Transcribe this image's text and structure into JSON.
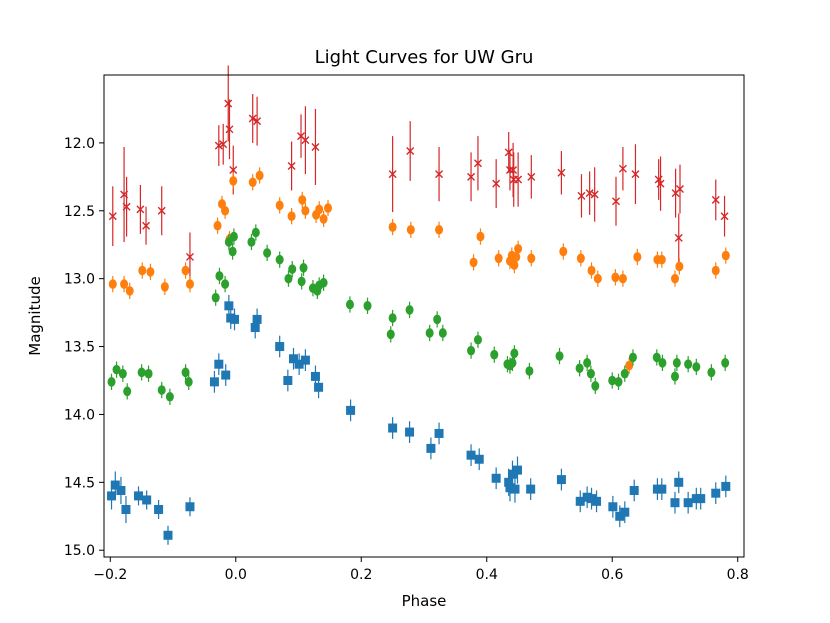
{
  "chart_data": {
    "type": "scatter",
    "title": "Light Curves for UW Gru",
    "xlabel": "Phase",
    "ylabel": "Magnitude",
    "xlim": [
      -0.21,
      0.81
    ],
    "ylim": [
      11.5,
      15.05
    ],
    "y_inverted": true,
    "x_ticks": [
      -0.2,
      0.0,
      0.2,
      0.4,
      0.6,
      0.8
    ],
    "x_tick_labels": [
      "−0.2",
      "0.0",
      "0.2",
      "0.4",
      "0.6",
      "0.8"
    ],
    "y_ticks": [
      12.0,
      12.5,
      13.0,
      13.5,
      14.0,
      14.5,
      15.0
    ],
    "y_tick_labels": [
      "12.0",
      "12.5",
      "13.0",
      "13.5",
      "14.0",
      "14.5",
      "15.0"
    ],
    "series": [
      {
        "name": "red",
        "color": "#d62728",
        "marker": "x",
        "points": [
          [
            -0.196,
            12.54,
            0.22
          ],
          [
            -0.178,
            12.38,
            0.35
          ],
          [
            -0.174,
            12.47,
            0.22
          ],
          [
            -0.152,
            12.49,
            0.18
          ],
          [
            -0.143,
            12.61,
            0.14
          ],
          [
            -0.118,
            12.5,
            0.18
          ],
          [
            -0.073,
            12.84,
            0.18
          ],
          [
            -0.027,
            12.02,
            0.15
          ],
          [
            -0.02,
            12.01,
            0.15
          ],
          [
            -0.012,
            11.71,
            0.28
          ],
          [
            -0.01,
            11.9,
            0.22
          ],
          [
            -0.004,
            12.2,
            0.18
          ],
          [
            0.027,
            11.82,
            0.18
          ],
          [
            0.034,
            11.84,
            0.18
          ],
          [
            0.089,
            12.17,
            0.18
          ],
          [
            0.104,
            11.95,
            0.16
          ],
          [
            0.111,
            11.98,
            0.25
          ],
          [
            0.127,
            12.03,
            0.28
          ],
          [
            0.25,
            12.23,
            0.28
          ],
          [
            0.278,
            12.06,
            0.22
          ],
          [
            0.324,
            12.23,
            0.2
          ],
          [
            0.375,
            12.25,
            0.18
          ],
          [
            0.386,
            12.15,
            0.2
          ],
          [
            0.415,
            12.3,
            0.18
          ],
          [
            0.435,
            12.07,
            0.15
          ],
          [
            0.437,
            12.2,
            0.15
          ],
          [
            0.442,
            12.2,
            0.2
          ],
          [
            0.443,
            12.27,
            0.2
          ],
          [
            0.45,
            12.27,
            0.2
          ],
          [
            0.471,
            12.25,
            0.16
          ],
          [
            0.519,
            12.22,
            0.16
          ],
          [
            0.551,
            12.39,
            0.16
          ],
          [
            0.564,
            12.37,
            0.16
          ],
          [
            0.572,
            12.38,
            0.2
          ],
          [
            0.606,
            12.43,
            0.18
          ],
          [
            0.617,
            12.19,
            0.16
          ],
          [
            0.637,
            12.23,
            0.22
          ],
          [
            0.674,
            12.27,
            0.15
          ],
          [
            0.677,
            12.3,
            0.2
          ],
          [
            0.701,
            12.37,
            0.18
          ],
          [
            0.706,
            12.7,
            0.18
          ],
          [
            0.708,
            12.34,
            0.18
          ],
          [
            0.765,
            12.42,
            0.15
          ],
          [
            0.779,
            12.54,
            0.15
          ]
        ]
      },
      {
        "name": "orange",
        "color": "#ff7f0e",
        "marker": "o",
        "points": [
          [
            -0.196,
            13.04,
            0.06
          ],
          [
            -0.178,
            13.04,
            0.06
          ],
          [
            -0.169,
            13.09,
            0.06
          ],
          [
            -0.149,
            12.94,
            0.06
          ],
          [
            -0.136,
            12.95,
            0.06
          ],
          [
            -0.113,
            13.06,
            0.06
          ],
          [
            -0.08,
            12.94,
            0.06
          ],
          [
            -0.073,
            13.04,
            0.06
          ],
          [
            -0.029,
            12.61,
            0.06
          ],
          [
            -0.022,
            12.45,
            0.06
          ],
          [
            -0.017,
            12.5,
            0.06
          ],
          [
            -0.01,
            12.71,
            0.06
          ],
          [
            -0.004,
            12.28,
            0.06
          ],
          [
            0.027,
            12.29,
            0.06
          ],
          [
            0.038,
            12.24,
            0.06
          ],
          [
            0.07,
            12.46,
            0.06
          ],
          [
            0.089,
            12.54,
            0.06
          ],
          [
            0.106,
            12.42,
            0.06
          ],
          [
            0.111,
            12.5,
            0.06
          ],
          [
            0.128,
            12.53,
            0.06
          ],
          [
            0.133,
            12.49,
            0.06
          ],
          [
            0.14,
            12.56,
            0.06
          ],
          [
            0.147,
            12.48,
            0.06
          ],
          [
            0.25,
            12.62,
            0.06
          ],
          [
            0.279,
            12.64,
            0.06
          ],
          [
            0.324,
            12.64,
            0.06
          ],
          [
            0.379,
            12.88,
            0.06
          ],
          [
            0.39,
            12.69,
            0.06
          ],
          [
            0.419,
            12.85,
            0.06
          ],
          [
            0.437,
            12.87,
            0.06
          ],
          [
            0.44,
            12.83,
            0.06
          ],
          [
            0.444,
            12.9,
            0.06
          ],
          [
            0.447,
            12.84,
            0.06
          ],
          [
            0.45,
            12.78,
            0.06
          ],
          [
            0.471,
            12.85,
            0.06
          ],
          [
            0.522,
            12.8,
            0.06
          ],
          [
            0.55,
            12.85,
            0.06
          ],
          [
            0.567,
            12.94,
            0.06
          ],
          [
            0.577,
            13.0,
            0.06
          ],
          [
            0.605,
            12.99,
            0.06
          ],
          [
            0.617,
            13.0,
            0.06
          ],
          [
            0.627,
            13.64,
            0.06
          ],
          [
            0.64,
            12.84,
            0.06
          ],
          [
            0.672,
            12.86,
            0.06
          ],
          [
            0.679,
            12.86,
            0.06
          ],
          [
            0.7,
            13.0,
            0.06
          ],
          [
            0.707,
            12.91,
            0.06
          ],
          [
            0.765,
            12.94,
            0.06
          ],
          [
            0.781,
            12.83,
            0.06
          ]
        ]
      },
      {
        "name": "green",
        "color": "#2ca02c",
        "marker": "o",
        "points": [
          [
            -0.198,
            13.76,
            0.06
          ],
          [
            -0.19,
            13.67,
            0.06
          ],
          [
            -0.18,
            13.7,
            0.06
          ],
          [
            -0.173,
            13.83,
            0.06
          ],
          [
            -0.15,
            13.69,
            0.06
          ],
          [
            -0.139,
            13.7,
            0.06
          ],
          [
            -0.118,
            13.82,
            0.06
          ],
          [
            -0.105,
            13.87,
            0.06
          ],
          [
            -0.08,
            13.69,
            0.06
          ],
          [
            -0.075,
            13.76,
            0.06
          ],
          [
            -0.032,
            13.14,
            0.06
          ],
          [
            -0.026,
            12.98,
            0.06
          ],
          [
            -0.017,
            13.04,
            0.06
          ],
          [
            -0.011,
            12.73,
            0.06
          ],
          [
            -0.005,
            12.8,
            0.06
          ],
          [
            -0.003,
            12.69,
            0.06
          ],
          [
            0.025,
            12.73,
            0.06
          ],
          [
            0.032,
            12.66,
            0.06
          ],
          [
            0.05,
            12.81,
            0.06
          ],
          [
            0.07,
            12.86,
            0.06
          ],
          [
            0.084,
            13.0,
            0.06
          ],
          [
            0.09,
            12.93,
            0.06
          ],
          [
            0.105,
            13.02,
            0.06
          ],
          [
            0.108,
            12.92,
            0.06
          ],
          [
            0.123,
            13.07,
            0.06
          ],
          [
            0.13,
            13.09,
            0.06
          ],
          [
            0.133,
            13.05,
            0.06
          ],
          [
            0.14,
            13.03,
            0.06
          ],
          [
            0.182,
            13.19,
            0.06
          ],
          [
            0.21,
            13.2,
            0.06
          ],
          [
            0.247,
            13.41,
            0.06
          ],
          [
            0.25,
            13.29,
            0.06
          ],
          [
            0.277,
            13.23,
            0.06
          ],
          [
            0.309,
            13.4,
            0.06
          ],
          [
            0.321,
            13.3,
            0.06
          ],
          [
            0.33,
            13.4,
            0.06
          ],
          [
            0.375,
            13.53,
            0.06
          ],
          [
            0.386,
            13.45,
            0.06
          ],
          [
            0.412,
            13.56,
            0.06
          ],
          [
            0.433,
            13.63,
            0.06
          ],
          [
            0.437,
            13.64,
            0.06
          ],
          [
            0.441,
            13.62,
            0.06
          ],
          [
            0.444,
            13.55,
            0.06
          ],
          [
            0.468,
            13.68,
            0.06
          ],
          [
            0.516,
            13.57,
            0.06
          ],
          [
            0.548,
            13.66,
            0.06
          ],
          [
            0.56,
            13.62,
            0.06
          ],
          [
            0.566,
            13.7,
            0.06
          ],
          [
            0.573,
            13.79,
            0.06
          ],
          [
            0.6,
            13.75,
            0.06
          ],
          [
            0.61,
            13.76,
            0.06
          ],
          [
            0.62,
            13.7,
            0.06
          ],
          [
            0.633,
            13.58,
            0.06
          ],
          [
            0.671,
            13.58,
            0.06
          ],
          [
            0.68,
            13.62,
            0.06
          ],
          [
            0.7,
            13.72,
            0.06
          ],
          [
            0.703,
            13.62,
            0.06
          ],
          [
            0.721,
            13.63,
            0.06
          ],
          [
            0.734,
            13.65,
            0.06
          ],
          [
            0.758,
            13.69,
            0.06
          ],
          [
            0.78,
            13.62,
            0.06
          ]
        ]
      },
      {
        "name": "blue",
        "color": "#1f77b4",
        "marker": "s",
        "points": [
          [
            -0.198,
            14.6,
            0.1
          ],
          [
            -0.192,
            14.52,
            0.1
          ],
          [
            -0.183,
            14.56,
            0.1
          ],
          [
            -0.175,
            14.7,
            0.1
          ],
          [
            -0.155,
            14.6,
            0.07
          ],
          [
            -0.142,
            14.63,
            0.07
          ],
          [
            -0.123,
            14.7,
            0.07
          ],
          [
            -0.108,
            14.89,
            0.07
          ],
          [
            -0.073,
            14.68,
            0.07
          ],
          [
            -0.034,
            13.76,
            0.08
          ],
          [
            -0.027,
            13.63,
            0.08
          ],
          [
            -0.016,
            13.71,
            0.08
          ],
          [
            -0.011,
            13.2,
            0.08
          ],
          [
            -0.008,
            13.29,
            0.08
          ],
          [
            -0.002,
            13.3,
            0.08
          ],
          [
            0.031,
            13.36,
            0.08
          ],
          [
            0.034,
            13.3,
            0.08
          ],
          [
            0.07,
            13.5,
            0.08
          ],
          [
            0.083,
            13.75,
            0.08
          ],
          [
            0.092,
            13.59,
            0.08
          ],
          [
            0.101,
            13.63,
            0.08
          ],
          [
            0.111,
            13.6,
            0.08
          ],
          [
            0.127,
            13.72,
            0.08
          ],
          [
            0.132,
            13.8,
            0.08
          ],
          [
            0.183,
            13.97,
            0.08
          ],
          [
            0.25,
            14.1,
            0.08
          ],
          [
            0.277,
            14.13,
            0.08
          ],
          [
            0.311,
            14.25,
            0.08
          ],
          [
            0.324,
            14.14,
            0.08
          ],
          [
            0.375,
            14.3,
            0.08
          ],
          [
            0.388,
            14.33,
            0.08
          ],
          [
            0.415,
            14.47,
            0.08
          ],
          [
            0.435,
            14.5,
            0.1
          ],
          [
            0.437,
            14.54,
            0.1
          ],
          [
            0.441,
            14.44,
            0.1
          ],
          [
            0.445,
            14.55,
            0.1
          ],
          [
            0.449,
            14.41,
            0.1
          ],
          [
            0.47,
            14.55,
            0.08
          ],
          [
            0.519,
            14.48,
            0.08
          ],
          [
            0.549,
            14.64,
            0.08
          ],
          [
            0.56,
            14.61,
            0.08
          ],
          [
            0.567,
            14.62,
            0.08
          ],
          [
            0.575,
            14.64,
            0.08
          ],
          [
            0.601,
            14.68,
            0.08
          ],
          [
            0.612,
            14.75,
            0.08
          ],
          [
            0.62,
            14.72,
            0.08
          ],
          [
            0.635,
            14.56,
            0.08
          ],
          [
            0.672,
            14.55,
            0.08
          ],
          [
            0.679,
            14.55,
            0.08
          ],
          [
            0.7,
            14.65,
            0.08
          ],
          [
            0.706,
            14.5,
            0.08
          ],
          [
            0.721,
            14.65,
            0.08
          ],
          [
            0.734,
            14.62,
            0.08
          ],
          [
            0.741,
            14.62,
            0.08
          ],
          [
            0.765,
            14.58,
            0.08
          ],
          [
            0.781,
            14.53,
            0.08
          ]
        ]
      }
    ]
  }
}
